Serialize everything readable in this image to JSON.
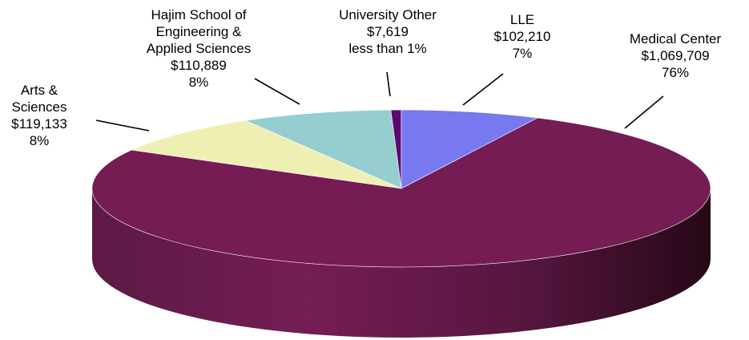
{
  "chart_data": {
    "type": "pie",
    "three_d": true,
    "title": "",
    "legend": "none",
    "slices": [
      {
        "label": [
          "Medical Center"
        ],
        "value": 1069709,
        "value_label": "$1,069,709",
        "percent_label": "76%",
        "color": "#741C53"
      },
      {
        "label": [
          "Arts &",
          "Sciences"
        ],
        "value": 119133,
        "value_label": "$119,133",
        "percent_label": "8%",
        "color": "#F0EFB3"
      },
      {
        "label": [
          "Hajim School of",
          "Engineering &",
          "Applied Sciences"
        ],
        "value": 110889,
        "value_label": "$110,889",
        "percent_label": "8%",
        "color": "#96CED0"
      },
      {
        "label": [
          "University Other"
        ],
        "value": 7619,
        "value_label": "$7,619",
        "percent_label": "less than 1%",
        "color": "#5A0A6E"
      },
      {
        "label": [
          "LLE"
        ],
        "value": 102210,
        "value_label": "$102,210",
        "percent_label": "7%",
        "color": "#7878F0"
      }
    ]
  }
}
